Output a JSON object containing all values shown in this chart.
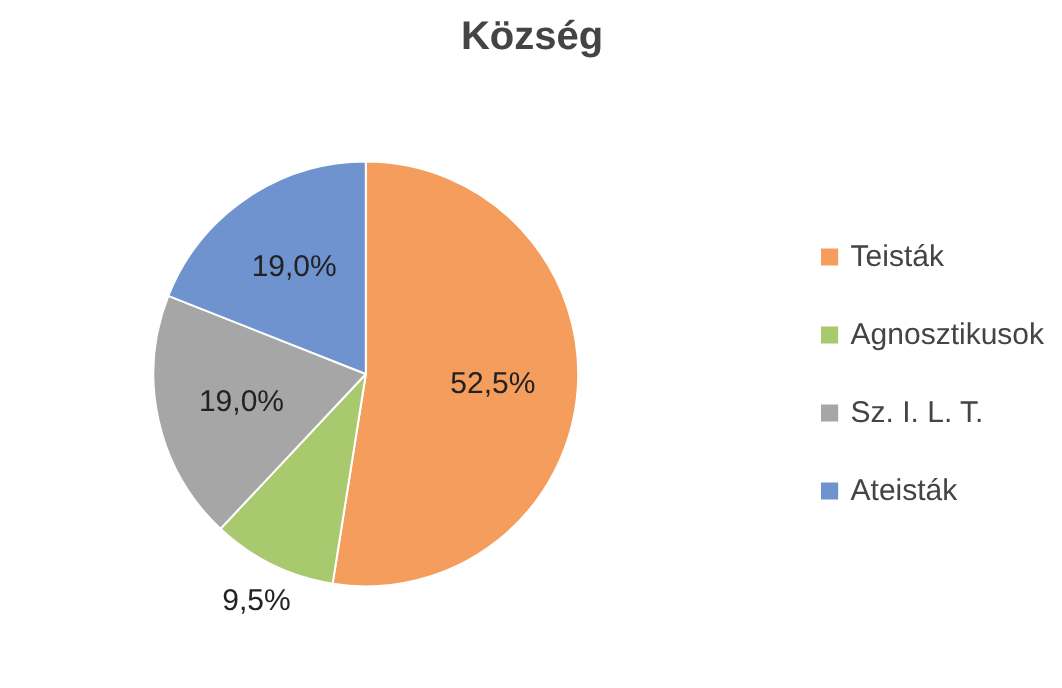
{
  "chart_data": {
    "type": "pie",
    "title": "Község",
    "categories": [
      "Teisták",
      "Agnosztikusok",
      "Sz. I. L. T.",
      "Ateisták"
    ],
    "values": [
      52.5,
      9.5,
      19.0,
      19.0
    ],
    "value_labels": [
      "52,5%",
      "9,5%",
      "19,0%",
      "19,0%"
    ],
    "colors": [
      "#f59d5c",
      "#a9c96f",
      "#a6a6a6",
      "#6f93cf"
    ],
    "legend": "right"
  }
}
